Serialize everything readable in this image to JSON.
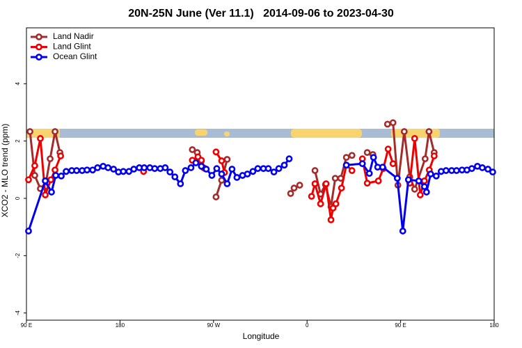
{
  "chart_data": {
    "type": "line",
    "title": "20N-25N June (Ver 11.1)   2014-09-06 to 2023-04-30",
    "x_label": "Longitude",
    "y_label": "XCO2 - MLO trend (ppm)",
    "xlim": [
      90,
      540
    ],
    "ylim": [
      -4.25,
      5.95
    ],
    "xticks": [
      {
        "value": 90,
        "label": "90 E"
      },
      180,
      {
        "value": 270,
        "label": "90 W"
      },
      {
        "value": 360,
        "label": "0"
      },
      {
        "value": 450,
        "label": "90 E"
      },
      {
        "value": 540,
        "label": "180"
      }
    ],
    "yticks": [
      -4,
      -2,
      0,
      2,
      4
    ],
    "grid": false,
    "legend": "top-left",
    "series": [
      {
        "name": "Land Nadir",
        "color": "#a52a2a",
        "x": [
          93.4,
          98.0,
          103.4,
          108.1,
          112.8,
          117.5,
          122.2,
          null,
          249.6,
          254.3,
          258.3,
          260.3,
          null,
          272.4,
          277.8,
          283.1,
          null,
          344.2,
          347.5,
          352.9,
          null,
          367.6,
          373.0,
          377.7,
          383.0,
          387.1,
          392.4,
          397.8,
          403.2,
          null,
          417.9,
          423.3,
          null,
          437.4,
          442.7,
          447.4,
          453.5,
          458.8,
          463.5,
          473.6,
          477.3,
          482.3
        ],
        "values": [
          2.33,
          0.8,
          0.34,
          0.41,
          1.38,
          2.33,
          1.6,
          null,
          1.7,
          1.6,
          1.31,
          1.07,
          null,
          0.05,
          0.63,
          1.36,
          null,
          0.17,
          0.36,
          0.46,
          null,
          0.97,
          0.15,
          0.48,
          -0.29,
          0.7,
          0.7,
          1.43,
          1.5,
          null,
          1.6,
          1.53,
          null,
          2.59,
          2.64,
          0.46,
          2.33,
          0.75,
          0.32,
          1.38,
          2.33,
          1.6
        ]
      },
      {
        "name": "Land Glint",
        "color": "#ee0000",
        "x": [
          92.0,
          98.0,
          103.4,
          108.1,
          113.5,
          117.5,
          122.9,
          null,
          202.7,
          null,
          249.6,
          255.0,
          258.3,
          261.7,
          null,
          272.4,
          277.8,
          280.5,
          null,
          364.3,
          367.6,
          373.0,
          378.3,
          383.0,
          385.0,
          387.7,
          393.1,
          397.8,
          403.2,
          null,
          413.2,
          417.9,
          428.6,
          433.3,
          438.0,
          442.7,
          null,
          458.8,
          463.5,
          468.9,
          472.9,
          477.6,
          482.3
        ],
        "values": [
          0.65,
          1.14,
          2.09,
          0.12,
          0.65,
          0.99,
          1.48,
          null,
          0.94,
          null,
          1.33,
          1.45,
          1.33,
          1.04,
          null,
          1.62,
          1.31,
          0.9,
          null,
          0.07,
          0.51,
          -0.19,
          0.51,
          -0.75,
          -0.34,
          -0.19,
          0.36,
          1.16,
          0.97,
          null,
          1.38,
          0.53,
          0.61,
          1.04,
          1.72,
          1.21,
          null,
          0.53,
          2.09,
          0.12,
          0.61,
          0.99,
          1.48
        ]
      },
      {
        "name": "Ocean Glint",
        "color": "#0000ee",
        "x": [
          92.0,
          108.1,
          114.1,
          118.2,
          123.5,
          128.2,
          133.6,
          138.3,
          143.6,
          148.3,
          153.7,
          158.4,
          163.8,
          168.5,
          173.8,
          178.5,
          183.2,
          188.6,
          193.3,
          198.6,
          203.3,
          208.7,
          213.4,
          218.8,
          223.5,
          228.1,
          232.8,
          238.2,
          242.9,
          248.3,
          253.0,
          258.3,
          263.0,
          268.4,
          273.1,
          277.8,
          283.1,
          287.8,
          292.5,
          297.9,
          302.6,
          307.9,
          312.6,
          318.0,
          322.7,
          328.1,
          332.8,
          338.1,
          342.8,
          null,
          397.8,
          413.2,
          419.9,
          423.9,
          427.9,
          432.7,
          446.8,
          452.1,
          457.5,
          467.5,
          472.9,
          474.9,
          478.9,
          484.3,
          489.0,
          493.7,
          499.1,
          503.8,
          509.1,
          513.8,
          518.5,
          523.9,
          528.6,
          534.0,
          538.6
        ],
        "values": [
          -1.14,
          0.61,
          0.22,
          0.8,
          0.78,
          0.94,
          0.97,
          0.97,
          0.97,
          0.99,
          0.99,
          1.07,
          1.12,
          1.07,
          1.02,
          0.92,
          0.94,
          0.94,
          1.02,
          1.07,
          1.07,
          1.07,
          1.04,
          1.04,
          1.07,
          0.92,
          0.75,
          0.51,
          0.97,
          1.07,
          1.24,
          1.12,
          1.02,
          0.8,
          1.04,
          0.85,
          0.51,
          1.02,
          0.73,
          0.8,
          0.85,
          0.94,
          1.04,
          1.04,
          1.04,
          0.92,
          1.04,
          1.16,
          1.38,
          null,
          1.16,
          1.21,
          0.87,
          1.43,
          1.09,
          1.09,
          0.7,
          -1.14,
          0.65,
          0.61,
          0.41,
          0.22,
          0.85,
          0.78,
          0.94,
          0.97,
          0.97,
          0.97,
          0.99,
          0.99,
          1.04,
          1.12,
          1.07,
          1.02,
          0.92
        ]
      }
    ]
  }
}
